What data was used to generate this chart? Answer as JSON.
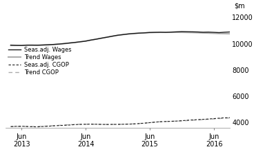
{
  "ylim": [
    3600,
    12500
  ],
  "yticks": [
    4000,
    6000,
    8000,
    10000,
    12000
  ],
  "background_color": "#ffffff",
  "seas_wages": [
    9900,
    9880,
    9870,
    9900,
    9900,
    9890,
    9910,
    9930,
    9950,
    9980,
    10020,
    10060,
    10100,
    10150,
    10200,
    10280,
    10350,
    10430,
    10500,
    10580,
    10650,
    10700,
    10750,
    10780,
    10810,
    10830,
    10860,
    10870,
    10880,
    10870,
    10890,
    10910,
    10930,
    10920,
    10910,
    10900,
    10880,
    10890,
    10870,
    10850,
    10880,
    10900,
    10910,
    10890,
    10880,
    10870,
    10850,
    10840,
    10820,
    10800,
    10810,
    10820,
    10800,
    10790,
    10780,
    10790,
    10780,
    10770,
    10760,
    10780,
    10800,
    10820,
    10840,
    10860,
    10870,
    10880,
    10890,
    10870,
    10870
  ],
  "trend_wages": [
    9870,
    9875,
    9880,
    9885,
    9890,
    9895,
    9900,
    9915,
    9940,
    9975,
    10010,
    10055,
    10100,
    10155,
    10210,
    10285,
    10355,
    10430,
    10505,
    10575,
    10645,
    10700,
    10748,
    10782,
    10810,
    10830,
    10850,
    10862,
    10870,
    10870,
    10870,
    10870,
    10868,
    10860,
    10850,
    10840,
    10825,
    10810,
    10795,
    10780,
    10770,
    10762,
    10758,
    10755,
    10752,
    10750,
    10748,
    10745,
    10742,
    10740,
    10740,
    10742,
    10745,
    10750,
    10758,
    10768,
    10778,
    10785,
    10790,
    10800,
    10810,
    10820,
    10830,
    10840,
    10848,
    10855,
    10860,
    10865,
    10870
  ],
  "seas_cgop": [
    3700,
    3720,
    3730,
    3710,
    3690,
    3680,
    3710,
    3730,
    3760,
    3780,
    3800,
    3820,
    3850,
    3870,
    3880,
    3890,
    3880,
    3870,
    3860,
    3870,
    3870,
    3880,
    3890,
    3900,
    3930,
    3960,
    4000,
    4040,
    4070,
    4090,
    4100,
    4120,
    4150,
    4180,
    4210,
    4230,
    4250,
    4280,
    4310,
    4340,
    4370,
    4380,
    4370,
    4360,
    4350,
    4330,
    4310,
    4300,
    4290,
    4270,
    4260,
    4250,
    4240,
    4230,
    4230,
    4240,
    4250,
    4260,
    4270,
    4280,
    4285,
    4280,
    4270,
    4260,
    4250,
    4240,
    4230,
    4220,
    4210
  ],
  "trend_cgop": [
    3700,
    3710,
    3715,
    3710,
    3705,
    3710,
    3725,
    3745,
    3770,
    3795,
    3820,
    3845,
    3865,
    3878,
    3882,
    3882,
    3878,
    3870,
    3866,
    3868,
    3872,
    3880,
    3892,
    3908,
    3935,
    3965,
    4002,
    4040,
    4072,
    4092,
    4105,
    4118,
    4135,
    4158,
    4185,
    4208,
    4232,
    4258,
    4285,
    4312,
    4338,
    4358,
    4368,
    4368,
    4358,
    4340,
    4320,
    4298,
    4278,
    4262,
    4250,
    4242,
    4238,
    4238,
    4240,
    4245,
    4252,
    4258,
    4262,
    4268,
    4272,
    4270,
    4265,
    4258,
    4250,
    4242,
    4235,
    4228,
    4222
  ],
  "line_colors": {
    "seas_wages": "#1a1a1a",
    "trend_wages": "#aaaaaa",
    "seas_cgop": "#1a1a1a",
    "trend_cgop": "#aaaaaa"
  },
  "legend_labels": [
    "Seas.adj. Wages",
    "Trend Wages",
    "Seas.adj. CGOP",
    "Trend CGOP"
  ]
}
